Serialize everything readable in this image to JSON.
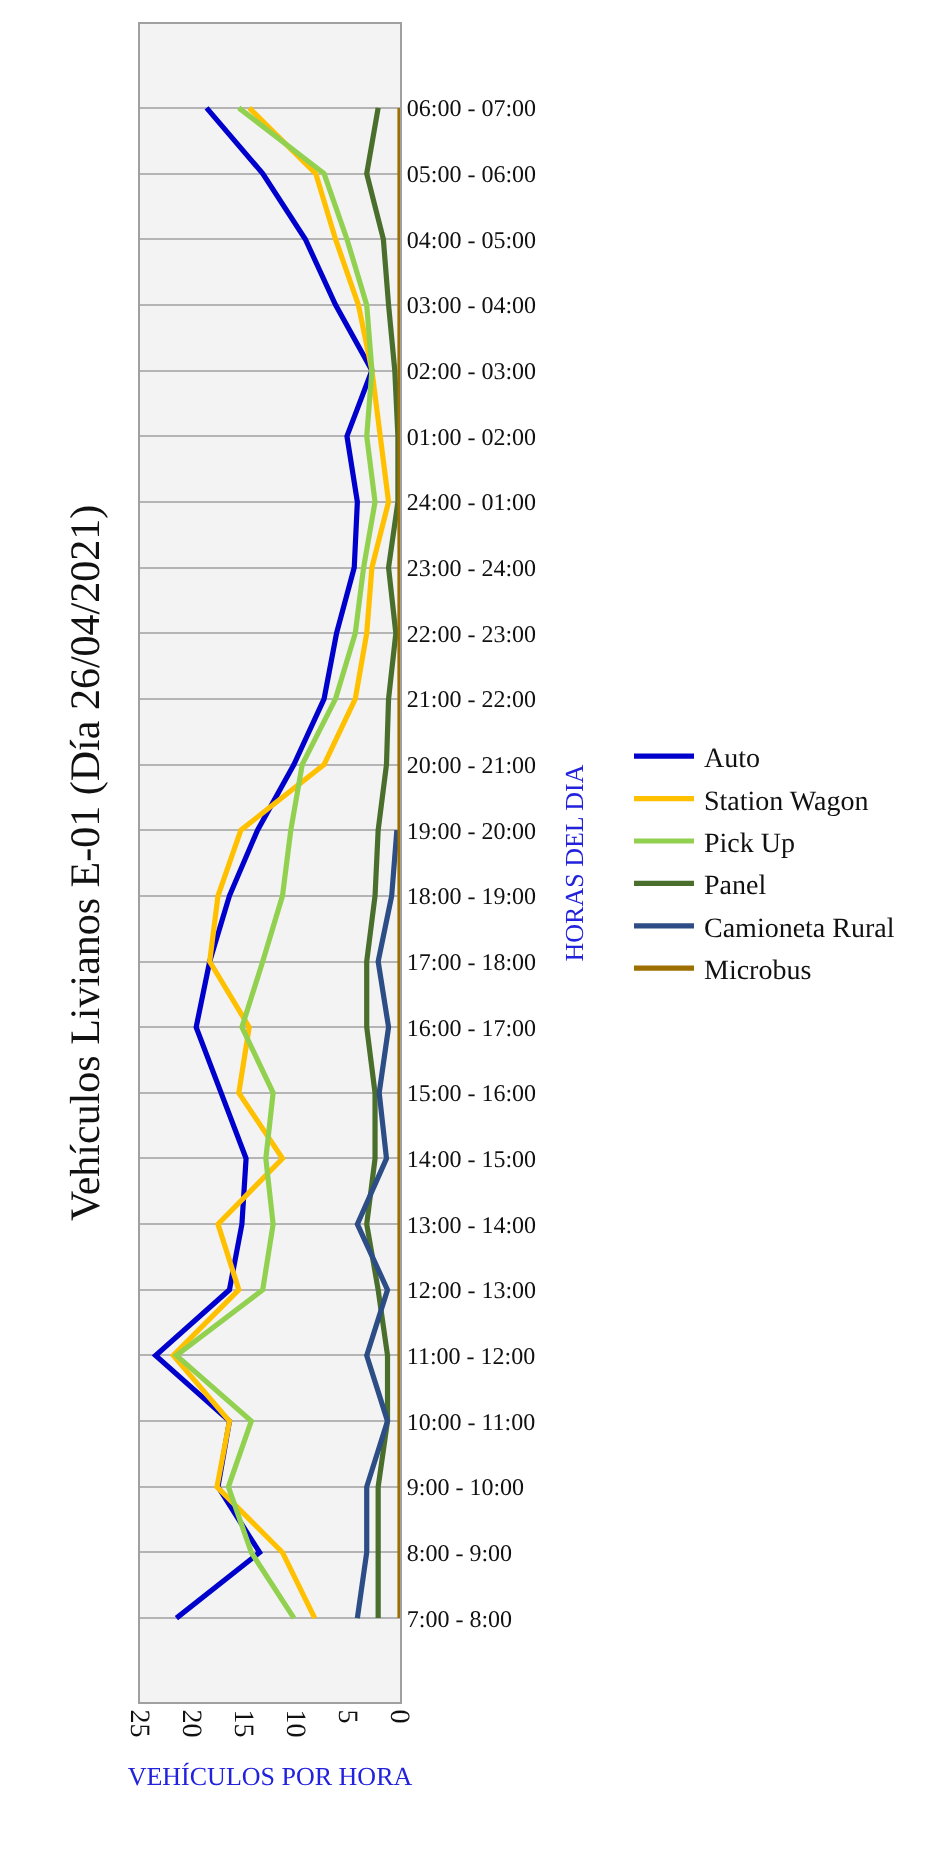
{
  "chart_data": {
    "type": "line",
    "orientation": "horizontal",
    "title": "Vehículos Livianos E-01 (Día 26/04/2021)",
    "xlabel": "VEHÍCULOS POR HORA",
    "ylabel": "HORAS DEL DIA",
    "categories": [
      "06:00 - 07:00",
      "05:00 - 06:00",
      "04:00 - 05:00",
      "03:00 - 04:00",
      "02:00 - 03:00",
      "01:00 - 02:00",
      "24:00 - 01:00",
      "23:00 - 24:00",
      "22:00 - 23:00",
      "21:00 - 22:00",
      "20:00 - 21:00",
      "19:00 - 20:00",
      "18:00 - 19:00",
      "17:00 - 18:00",
      "16:00 - 17:00",
      "15:00 - 16:00",
      "14:00 - 15:00",
      "13:00 - 14:00",
      "12:00 - 13:00",
      "11:00 - 12:00",
      "10:00 - 11:00",
      "9:00 - 10:00",
      "8:00 - 9:00",
      "7:00 - 8:00"
    ],
    "series": [
      {
        "name": "Auto",
        "color": "#0000cc",
        "values": [
          18.6,
          13.2,
          9.1,
          6.2,
          2.7,
          5.1,
          4.1,
          4.4,
          6.1,
          7.3,
          10.2,
          13.7,
          16.4,
          18.3,
          19.6,
          17.2,
          14.8,
          15.2,
          16.4,
          23.5,
          16.4,
          17.5,
          13.5,
          21.5
        ]
      },
      {
        "name": "Station Wagon",
        "color": "#ffc000",
        "values": [
          14.5,
          8.1,
          6.2,
          4.0,
          2.7,
          1.9,
          1.1,
          2.7,
          3.2,
          4.3,
          7.3,
          15.3,
          17.5,
          18.3,
          14.5,
          15.5,
          11.3,
          17.5,
          15.5,
          21.8,
          16.4,
          17.6,
          11.3,
          8.2
        ]
      },
      {
        "name": "Pick Up",
        "color": "#92d050",
        "values": [
          15.5,
          7.3,
          5.1,
          3.2,
          2.7,
          3.2,
          2.4,
          3.5,
          4.3,
          6.2,
          9.4,
          10.5,
          11.3,
          13.2,
          15.2,
          12.2,
          12.9,
          12.2,
          13.2,
          21.5,
          14.3,
          16.5,
          14.3,
          10.2
        ]
      },
      {
        "name": "Panel",
        "color": "#4a6e2c",
        "values": [
          2.1,
          3.2,
          1.6,
          1.1,
          0.5,
          0.2,
          0.2,
          1.1,
          0.4,
          1.1,
          1.3,
          2.1,
          2.4,
          3.2,
          3.2,
          2.4,
          2.4,
          3.2,
          2.1,
          1.2,
          1.2,
          2.1,
          2.1,
          2.1
        ]
      },
      {
        "name": "Camioneta Rural",
        "color": "#2c4d85",
        "values": [
          null,
          null,
          null,
          null,
          null,
          null,
          null,
          null,
          null,
          null,
          null,
          0.3,
          0.8,
          2.1,
          1.1,
          2.0,
          1.3,
          4.1,
          1.2,
          3.2,
          1.2,
          3.2,
          3.2,
          4.1
        ]
      },
      {
        "name": "Microbus",
        "color": "#9c6f00",
        "values": [
          0,
          0,
          0,
          0,
          0,
          0,
          0,
          0,
          0,
          0,
          0,
          0,
          0,
          0,
          0,
          0,
          0,
          0,
          0,
          0,
          0,
          0,
          0,
          0
        ]
      }
    ],
    "xlim": [
      25,
      0
    ],
    "xticks": [
      0,
      5,
      10,
      15,
      20,
      25
    ],
    "grid": "y",
    "legend": "right",
    "marker": "none",
    "line_style": "solid"
  }
}
